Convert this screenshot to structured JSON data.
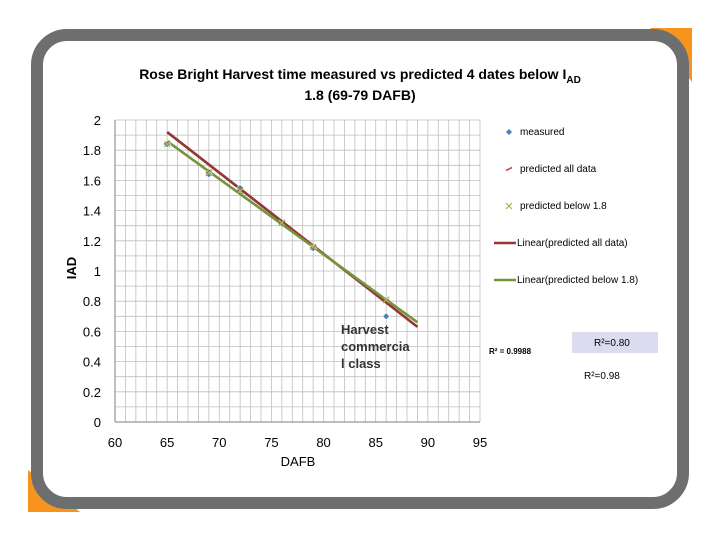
{
  "chart_data": {
    "type": "scatter",
    "title": "Rose Bright Harvest time measured vs predicted 4 dates below I",
    "title_subscript": "AD",
    "title_line2": "1.8 (69-79 DAFB)",
    "xlabel": "DAFB",
    "ylabel": "IAD",
    "xlim": [
      60,
      95
    ],
    "ylim": [
      0,
      2
    ],
    "x_ticks": [
      "60",
      "65",
      "70",
      "75",
      "80",
      "85",
      "90",
      "95"
    ],
    "y_ticks": [
      "0",
      "0.2",
      "0.4",
      "0.6",
      "0.8",
      "1",
      "1.2",
      "1.4",
      "1.6",
      "1.8",
      "2"
    ],
    "grid": true,
    "legend_position": "right",
    "series": [
      {
        "name": "measured",
        "kind": "points",
        "marker": "diamond",
        "color": "#4f81bd",
        "points": [
          [
            65,
            1.84
          ],
          [
            69,
            1.64
          ],
          [
            72,
            1.55
          ],
          [
            79,
            1.15
          ],
          [
            86,
            0.7
          ]
        ]
      },
      {
        "name": "predicted all data",
        "kind": "points",
        "marker": "dash",
        "color": "#c0504d",
        "points": [
          [
            65,
            1.85
          ],
          [
            69,
            1.66
          ],
          [
            72,
            1.54
          ],
          [
            76,
            1.32
          ],
          [
            79,
            1.16
          ],
          [
            86,
            0.8
          ]
        ]
      },
      {
        "name": "predicted below 1.8",
        "kind": "points",
        "marker": "x",
        "color": "#9bbb59",
        "points": [
          [
            65,
            1.84
          ],
          [
            69,
            1.65
          ],
          [
            72,
            1.53
          ],
          [
            76,
            1.32
          ],
          [
            79,
            1.16
          ],
          [
            86,
            0.81
          ]
        ]
      },
      {
        "name": "Linear(predicted all data)",
        "kind": "line",
        "color": "#943634",
        "points": [
          [
            65,
            1.92
          ],
          [
            89,
            0.63
          ]
        ]
      },
      {
        "name": "Linear(predicted below 1.8)",
        "kind": "line",
        "color": "#77933c",
        "points": [
          [
            65,
            1.86
          ],
          [
            89,
            0.66
          ]
        ]
      }
    ],
    "annotations": {
      "harvest": [
        "Harvest",
        "commercia",
        "l class"
      ],
      "r2_a": "R² = 0.9988",
      "r2_b": "R²=0.80",
      "r2_c": "R²=0.98"
    }
  },
  "colors": {
    "frame": "#6d6e70",
    "accent": "#f7941d",
    "grid": "#bfbfbf",
    "r2_box": "#dcdcf0"
  }
}
